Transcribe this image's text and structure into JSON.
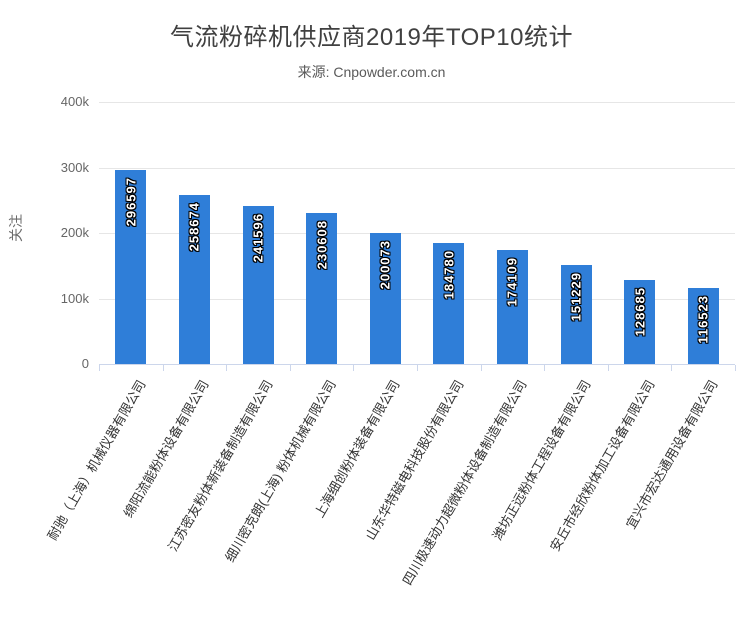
{
  "colors": {
    "background": "#ffffff",
    "bar": "#2f7ed8",
    "grid": "#e6e6e6",
    "axis_line": "#ccd6eb",
    "title_text": "#404040",
    "subtitle_text": "#5a5a5a",
    "axis_title_text": "#6b6b6b",
    "tick_label_text": "#666666",
    "category_label_text": "#333333",
    "data_label_text": "#ffffff"
  },
  "chart_data": {
    "type": "bar",
    "title": "气流粉碎机供应商2019年TOP10统计",
    "subtitle": "来源: Cnpowder.com.cn",
    "xlabel": "",
    "ylabel": "关注",
    "ylim": [
      0,
      400000
    ],
    "grid": true,
    "legend": "none",
    "yticks": [
      {
        "value": 0,
        "label": "0"
      },
      {
        "value": 100000,
        "label": "100k"
      },
      {
        "value": 200000,
        "label": "200k"
      },
      {
        "value": 300000,
        "label": "300k"
      },
      {
        "value": 400000,
        "label": "400k"
      }
    ],
    "categories": [
      "耐驰（上海）机械仪器有限公司",
      "绵阳流能粉体设备有限公司",
      "江苏密友粉体新装备制造有限公司",
      "细川密克朗(上海) 粉体机械有限公司",
      "上海细创粉体装备有限公司",
      "山东华特磁电科技股份有限公司",
      "四川极速动力超微粉体设备制造有限公司",
      "潍坊正远粉体工程设备有限公司",
      "安丘市经欣粉体加工设备有限公司",
      "宜兴市宏达通用设备有限公司"
    ],
    "values": [
      296597,
      258674,
      241596,
      230608,
      200073,
      184780,
      174109,
      151229,
      128685,
      116523
    ]
  }
}
